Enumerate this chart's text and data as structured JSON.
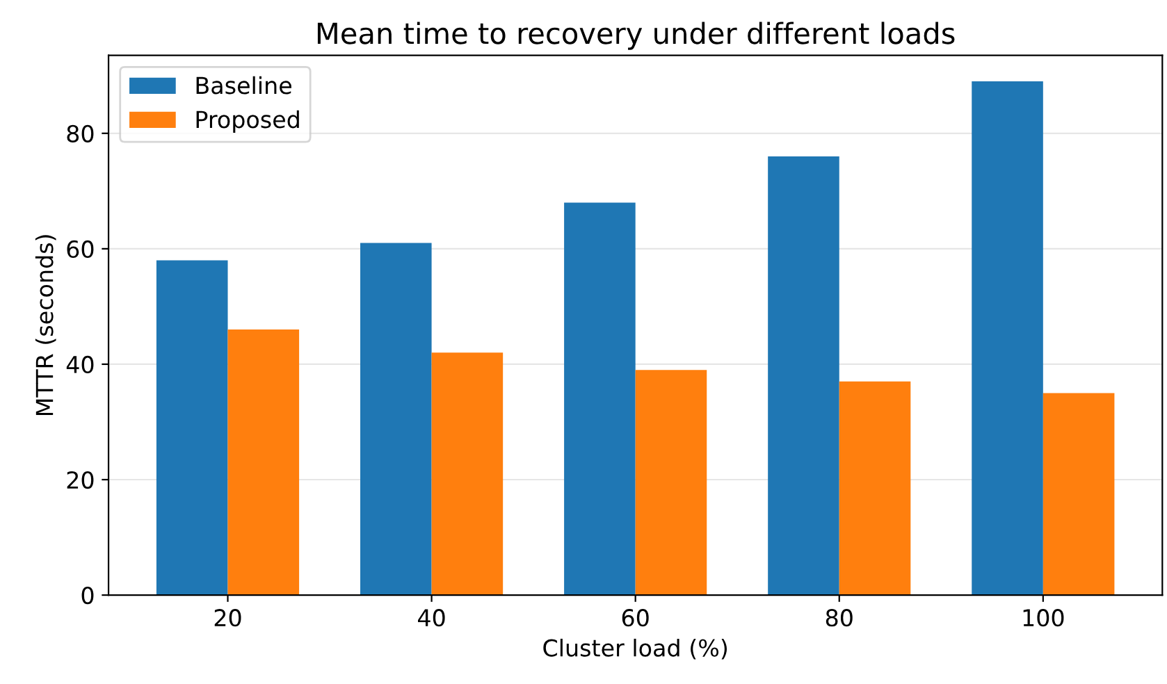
{
  "chart_data": {
    "type": "bar",
    "title": "Mean time to recovery under different loads",
    "xlabel": "Cluster load (%)",
    "ylabel": "MTTR (seconds)",
    "categories": [
      "20",
      "40",
      "60",
      "80",
      "100"
    ],
    "series": [
      {
        "name": "Baseline",
        "color": "#1f77b4",
        "values": [
          58,
          61,
          68,
          76,
          89
        ]
      },
      {
        "name": "Proposed",
        "color": "#ff7f0e",
        "values": [
          46,
          42,
          39,
          37,
          35
        ]
      }
    ],
    "ylim": [
      0,
      93.5
    ],
    "yticks": [
      0,
      20,
      40,
      60,
      80
    ],
    "grid": "y",
    "legend": "top left"
  }
}
